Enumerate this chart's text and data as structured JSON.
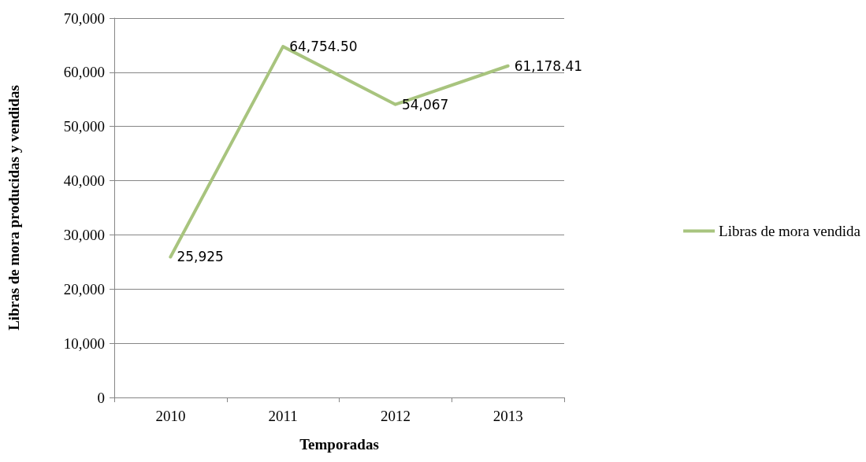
{
  "chart_data": {
    "type": "line",
    "xlabel": "Temporadas",
    "ylabel": "Libras de mora producidas y vendidas",
    "categories": [
      "2010",
      "2011",
      "2012",
      "2013"
    ],
    "series": [
      {
        "name": "Libras de mora vendida",
        "color": "#a8c47e",
        "values": [
          25925,
          64754.5,
          54067,
          61178.41
        ],
        "value_labels": [
          "25,925",
          "64,754.50",
          "54,067",
          "61,178.41"
        ]
      }
    ],
    "ylim": [
      0,
      70000
    ],
    "yticks": [
      {
        "value": 0,
        "label": "0"
      },
      {
        "value": 10000,
        "label": "10,000"
      },
      {
        "value": 20000,
        "label": "20,000"
      },
      {
        "value": 30000,
        "label": "30,000"
      },
      {
        "value": 40000,
        "label": "40,000"
      },
      {
        "value": 50000,
        "label": "50,000"
      },
      {
        "value": 60000,
        "label": "60,000"
      },
      {
        "value": 70000,
        "label": "70,000"
      }
    ],
    "grid": "y",
    "legend": "right",
    "marker": "none",
    "line_style": "solid"
  }
}
